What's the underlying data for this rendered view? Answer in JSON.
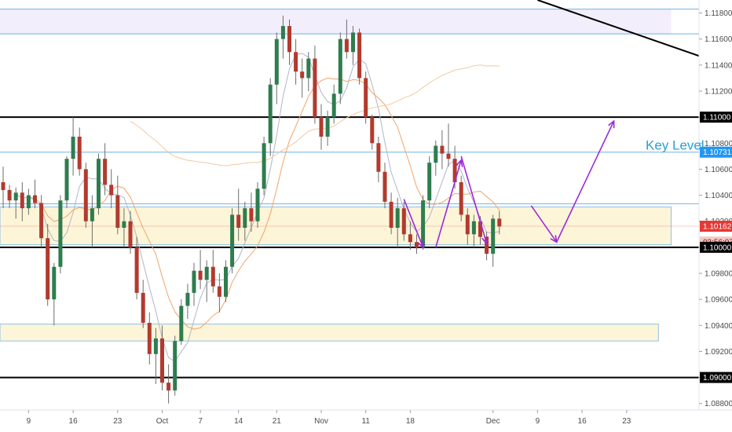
{
  "chart_data": {
    "type": "candlestick",
    "instrument_note": "",
    "colors": {
      "up": "#26a69a",
      "down": "#ef5350",
      "up_body": "#2e7d4f",
      "down_body": "#b23a2e",
      "wick": "#6d6d6d",
      "ma_fast": "#b0b6c8",
      "ma_slow": "#f0a46a",
      "ma_long": "#f3c9a0",
      "zone_fill": "#fdf5d8",
      "zone_border": "#8fc0e8",
      "purple_zone": "#f3eefb",
      "blue_line": "#6fb2e6",
      "black_line": "#000000",
      "arrow": "#9b2bd9",
      "price_tag_blue": "#2196f3",
      "price_tag_red": "#e53935",
      "price_tag_pink": "#f4c7c3"
    },
    "y_axis": {
      "min": 1.0875,
      "max": 1.119,
      "ticks": [
        "1.11800",
        "1.11600",
        "1.11400",
        "1.11200",
        "1.11000",
        "1.10800",
        "1.10600",
        "1.10400",
        "1.10200",
        "1.10000",
        "1.09800",
        "1.09600",
        "1.09400",
        "1.09200",
        "1.09000",
        "1.08800"
      ],
      "tick_values": [
        1.118,
        1.116,
        1.114,
        1.112,
        1.11,
        1.108,
        1.106,
        1.104,
        1.102,
        1.1,
        1.098,
        1.096,
        1.094,
        1.092,
        1.09,
        1.088
      ]
    },
    "x_axis": {
      "labels": [
        "9",
        "16",
        "23",
        "Oct",
        "7",
        "14",
        "21",
        "Nov",
        "11",
        "18",
        "Dec",
        "9",
        "16",
        "23"
      ],
      "label_index": [
        4,
        11,
        18,
        25,
        31,
        37,
        43,
        50,
        57,
        64,
        77,
        84,
        91,
        98
      ]
    },
    "horizontal_levels": [
      {
        "name": "resistance-1.11000",
        "value": 1.11,
        "style": "black"
      },
      {
        "name": "support-1.10000",
        "value": 1.1,
        "style": "black"
      },
      {
        "name": "support-1.09000",
        "value": 1.09,
        "style": "black"
      },
      {
        "name": "key-level-1.10731",
        "value": 1.10731,
        "style": "blue"
      },
      {
        "name": "level-1.10335",
        "value": 1.10335,
        "style": "blue"
      },
      {
        "name": "purple-zone-top",
        "value": 1.1183,
        "style": "blue"
      },
      {
        "name": "purple-zone-bottom",
        "value": 1.1164,
        "style": "blue"
      }
    ],
    "zones": [
      {
        "name": "yellow-zone-upper",
        "from": 1.1002,
        "to": 1.1031,
        "x_end_index": 105
      },
      {
        "name": "yellow-zone-lower",
        "from": 1.0928,
        "to": 1.0941,
        "x_end_index": 103
      },
      {
        "name": "purple-zone",
        "from": 1.1164,
        "to": 1.1183,
        "x_end_index": 105
      }
    ],
    "trendline": {
      "from": [
        84,
        1.119
      ],
      "to": [
        110,
        1.1146
      ]
    },
    "arrows": [
      [
        [
          63,
          1.1037
        ],
        [
          66,
          1.1
        ]
      ],
      [
        [
          68,
          1.1
        ],
        [
          72,
          1.1067
        ]
      ],
      [
        [
          72,
          1.107
        ],
        [
          76,
          1.1003
        ]
      ],
      [
        [
          83,
          1.1032
        ],
        [
          87,
          1.1004
        ]
      ],
      [
        [
          87,
          1.1004
        ],
        [
          96,
          1.1097
        ]
      ]
    ],
    "key_level_label": "Key Level",
    "price_tags": [
      {
        "value": 1.11,
        "text": "1.11000",
        "style": "black"
      },
      {
        "value": 1.10731,
        "text": "1.10731",
        "style": "blue"
      },
      {
        "value": 1.10162,
        "text": "1.10162",
        "style": "red"
      },
      {
        "value": 1.1004,
        "text": "03:56:07",
        "style": "pink"
      },
      {
        "value": 1.1,
        "text": "1.10000",
        "style": "black"
      },
      {
        "value": 1.09,
        "text": "1.09000",
        "style": "black"
      }
    ],
    "current_price": 1.10162,
    "candles": [
      [
        1.105,
        1.1062,
        1.103,
        1.1044
      ],
      [
        1.1044,
        1.1048,
        1.103,
        1.1036
      ],
      [
        1.1036,
        1.1046,
        1.1022,
        1.1042
      ],
      [
        1.1042,
        1.105,
        1.102,
        1.103
      ],
      [
        1.103,
        1.1045,
        1.1025,
        1.104
      ],
      [
        1.104,
        1.1052,
        1.103,
        1.1034
      ],
      [
        1.1034,
        1.104,
        1.1,
        1.1007
      ],
      [
        1.1007,
        1.1018,
        1.0955,
        1.096
      ],
      [
        1.096,
        1.0988,
        1.094,
        1.0985
      ],
      [
        1.0985,
        1.104,
        1.098,
        1.1036
      ],
      [
        1.1036,
        1.107,
        1.103,
        1.1068
      ],
      [
        1.1068,
        1.11,
        1.1055,
        1.1085
      ],
      [
        1.1085,
        1.1092,
        1.1055,
        1.106
      ],
      [
        1.106,
        1.1065,
        1.1015,
        1.102
      ],
      [
        1.102,
        1.104,
        1.1,
        1.103
      ],
      [
        1.103,
        1.1072,
        1.1025,
        1.1068
      ],
      [
        1.1068,
        1.108,
        1.104,
        1.1048
      ],
      [
        1.1048,
        1.106,
        1.103,
        1.104
      ],
      [
        1.104,
        1.1055,
        1.101,
        1.1015
      ],
      [
        1.1015,
        1.103,
        1.1,
        1.102
      ],
      [
        1.102,
        1.1028,
        1.0995,
        1.1
      ],
      [
        1.1,
        1.1008,
        1.096,
        1.0965
      ],
      [
        1.0965,
        1.0975,
        1.0938,
        1.0942
      ],
      [
        1.0942,
        1.095,
        1.091,
        1.0918
      ],
      [
        1.0918,
        1.0938,
        1.0895,
        1.093
      ],
      [
        1.093,
        1.094,
        1.089,
        1.0896
      ],
      [
        1.0896,
        1.091,
        1.088,
        1.089
      ],
      [
        1.089,
        1.0932,
        1.0886,
        1.0928
      ],
      [
        1.0928,
        1.096,
        1.0925,
        1.0955
      ],
      [
        1.0955,
        1.0972,
        1.0945,
        1.0965
      ],
      [
        1.0965,
        1.0988,
        1.0955,
        1.0982
      ],
      [
        1.0982,
        1.0998,
        1.0968,
        1.0975
      ],
      [
        1.0975,
        1.099,
        1.0958,
        1.0985
      ],
      [
        1.0985,
        1.0998,
        1.0965,
        1.097
      ],
      [
        1.097,
        1.098,
        1.095,
        1.0962
      ],
      [
        1.0962,
        1.099,
        1.0958,
        1.0985
      ],
      [
        1.0985,
        1.103,
        1.098,
        1.1025
      ],
      [
        1.1025,
        1.1045,
        1.1005,
        1.1015
      ],
      [
        1.1015,
        1.1035,
        1.1005,
        1.103
      ],
      [
        1.103,
        1.1042,
        1.1012,
        1.102
      ],
      [
        1.102,
        1.105,
        1.1015,
        1.1045
      ],
      [
        1.1045,
        1.1085,
        1.104,
        1.108
      ],
      [
        1.108,
        1.113,
        1.107,
        1.1125
      ],
      [
        1.1125,
        1.1165,
        1.111,
        1.116
      ],
      [
        1.116,
        1.1178,
        1.1145,
        1.117
      ],
      [
        1.117,
        1.1175,
        1.114,
        1.115
      ],
      [
        1.115,
        1.116,
        1.1125,
        1.1135
      ],
      [
        1.1135,
        1.1145,
        1.1115,
        1.113
      ],
      [
        1.113,
        1.115,
        1.112,
        1.1145
      ],
      [
        1.1145,
        1.1155,
        1.1095,
        1.11
      ],
      [
        1.11,
        1.111,
        1.1075,
        1.1085
      ],
      [
        1.1085,
        1.1105,
        1.1078,
        1.11
      ],
      [
        1.11,
        1.1125,
        1.1095,
        1.1118
      ],
      [
        1.1118,
        1.1165,
        1.111,
        1.116
      ],
      [
        1.116,
        1.1175,
        1.1145,
        1.115
      ],
      [
        1.115,
        1.117,
        1.114,
        1.1165
      ],
      [
        1.1165,
        1.1168,
        1.1125,
        1.113
      ],
      [
        1.113,
        1.1135,
        1.1095,
        1.11
      ],
      [
        1.11,
        1.1102,
        1.1075,
        1.108
      ],
      [
        1.108,
        1.1085,
        1.105,
        1.1058
      ],
      [
        1.1058,
        1.1065,
        1.103,
        1.1035
      ],
      [
        1.1035,
        1.1042,
        1.101,
        1.1015
      ],
      [
        1.1015,
        1.1038,
        1.1,
        1.103
      ],
      [
        1.103,
        1.1035,
        1.1005,
        1.101
      ],
      [
        1.101,
        1.102,
        1.0998,
        1.1004
      ],
      [
        1.1004,
        1.101,
        1.0995,
        1.1
      ],
      [
        1.1,
        1.104,
        1.0998,
        1.1036
      ],
      [
        1.1036,
        1.107,
        1.103,
        1.1065
      ],
      [
        1.1065,
        1.1082,
        1.1055,
        1.1078
      ],
      [
        1.1078,
        1.109,
        1.106,
        1.1072
      ],
      [
        1.1072,
        1.1095,
        1.1062,
        1.1068
      ],
      [
        1.1068,
        1.1078,
        1.1045,
        1.105
      ],
      [
        1.105,
        1.1055,
        1.102,
        1.1025
      ],
      [
        1.1025,
        1.103,
        1.1002,
        1.101
      ],
      [
        1.101,
        1.1025,
        1.1,
        1.102
      ],
      [
        1.102,
        1.1024,
        1.1002,
        1.1008
      ],
      [
        1.1008,
        1.1012,
        1.099,
        1.0995
      ],
      [
        1.0995,
        1.1025,
        1.0985,
        1.1022
      ],
      [
        1.1022,
        1.1028,
        1.101,
        1.1016
      ]
    ]
  }
}
